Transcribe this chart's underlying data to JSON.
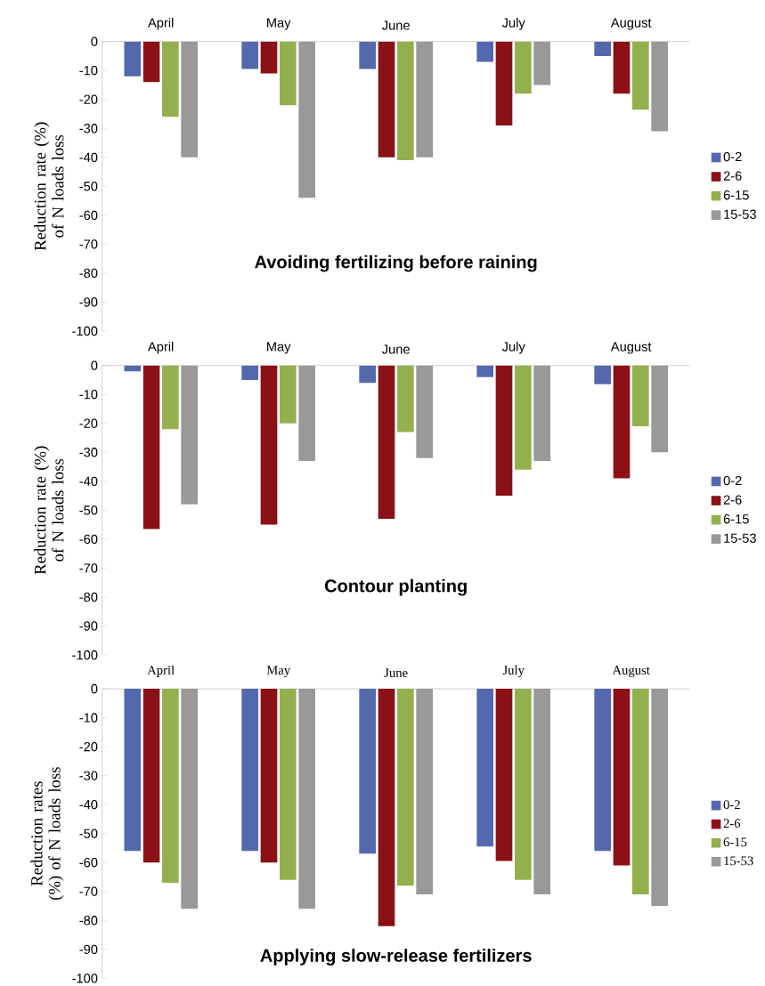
{
  "chart_data": [
    {
      "type": "bar",
      "title": "Avoiding fertilizing before raining",
      "ylabel": "Reduction rate (%) of N loads loss",
      "categories": [
        "April",
        "May",
        "June",
        "July",
        "August"
      ],
      "legend": "right",
      "ylim": [
        -100,
        0
      ],
      "yticks": [
        0,
        -10,
        -20,
        -30,
        -40,
        -50,
        -60,
        -70,
        -80,
        -90,
        -100
      ],
      "series": [
        {
          "name": "0-2",
          "color": "#5469ad",
          "values": [
            -12,
            -9.5,
            -9.5,
            -7,
            -5
          ]
        },
        {
          "name": "2-6",
          "color": "#8b1116",
          "values": [
            -14,
            -11,
            -40,
            -29,
            -18
          ]
        },
        {
          "name": "6-15",
          "color": "#93b04e",
          "values": [
            -26,
            -22,
            -41,
            -18,
            -23.5
          ]
        },
        {
          "name": "15-53",
          "color": "#999999",
          "values": [
            -40,
            -54,
            -40,
            -15,
            -31
          ]
        }
      ]
    },
    {
      "type": "bar",
      "title": "Contour planting",
      "ylabel": "Reduction rate (%) of N loads loss",
      "categories": [
        "April",
        "May",
        "June",
        "July",
        "August"
      ],
      "legend": "right",
      "ylim": [
        -100,
        0
      ],
      "yticks": [
        0,
        -10,
        -20,
        -30,
        -40,
        -50,
        -60,
        -70,
        -80,
        -90,
        -100
      ],
      "series": [
        {
          "name": "0-2",
          "color": "#5469ad",
          "values": [
            -2,
            -5,
            -6,
            -4,
            -6.5
          ]
        },
        {
          "name": "2-6",
          "color": "#8b1116",
          "values": [
            -56.5,
            -55,
            -53,
            -45,
            -39
          ]
        },
        {
          "name": "6-15",
          "color": "#93b04e",
          "values": [
            -22,
            -20,
            -23,
            -36,
            -21
          ]
        },
        {
          "name": "15-53",
          "color": "#999999",
          "values": [
            -48,
            -33,
            -32,
            -33,
            -30
          ]
        }
      ]
    },
    {
      "type": "bar",
      "title": "Applying slow-release fertilizers",
      "ylabel": "Reduction rates (%) of N loads loss",
      "categories": [
        "April",
        "May",
        "June",
        "July",
        "August"
      ],
      "legend": "right",
      "ylim": [
        -100,
        0
      ],
      "yticks": [
        0,
        -10,
        -20,
        -30,
        -40,
        -50,
        -60,
        -70,
        -80,
        -90,
        -100
      ],
      "series": [
        {
          "name": "0-2",
          "color": "#5469ad",
          "values": [
            -56,
            -56,
            -57,
            -54.5,
            -56
          ]
        },
        {
          "name": "2-6",
          "color": "#8b1116",
          "values": [
            -60,
            -60,
            -82,
            -59.5,
            -61
          ]
        },
        {
          "name": "6-15",
          "color": "#93b04e",
          "values": [
            -67,
            -66,
            -68,
            -66,
            -71
          ]
        },
        {
          "name": "15-53",
          "color": "#999999",
          "values": [
            -76,
            -76,
            -71,
            -71,
            -75
          ]
        }
      ]
    }
  ]
}
